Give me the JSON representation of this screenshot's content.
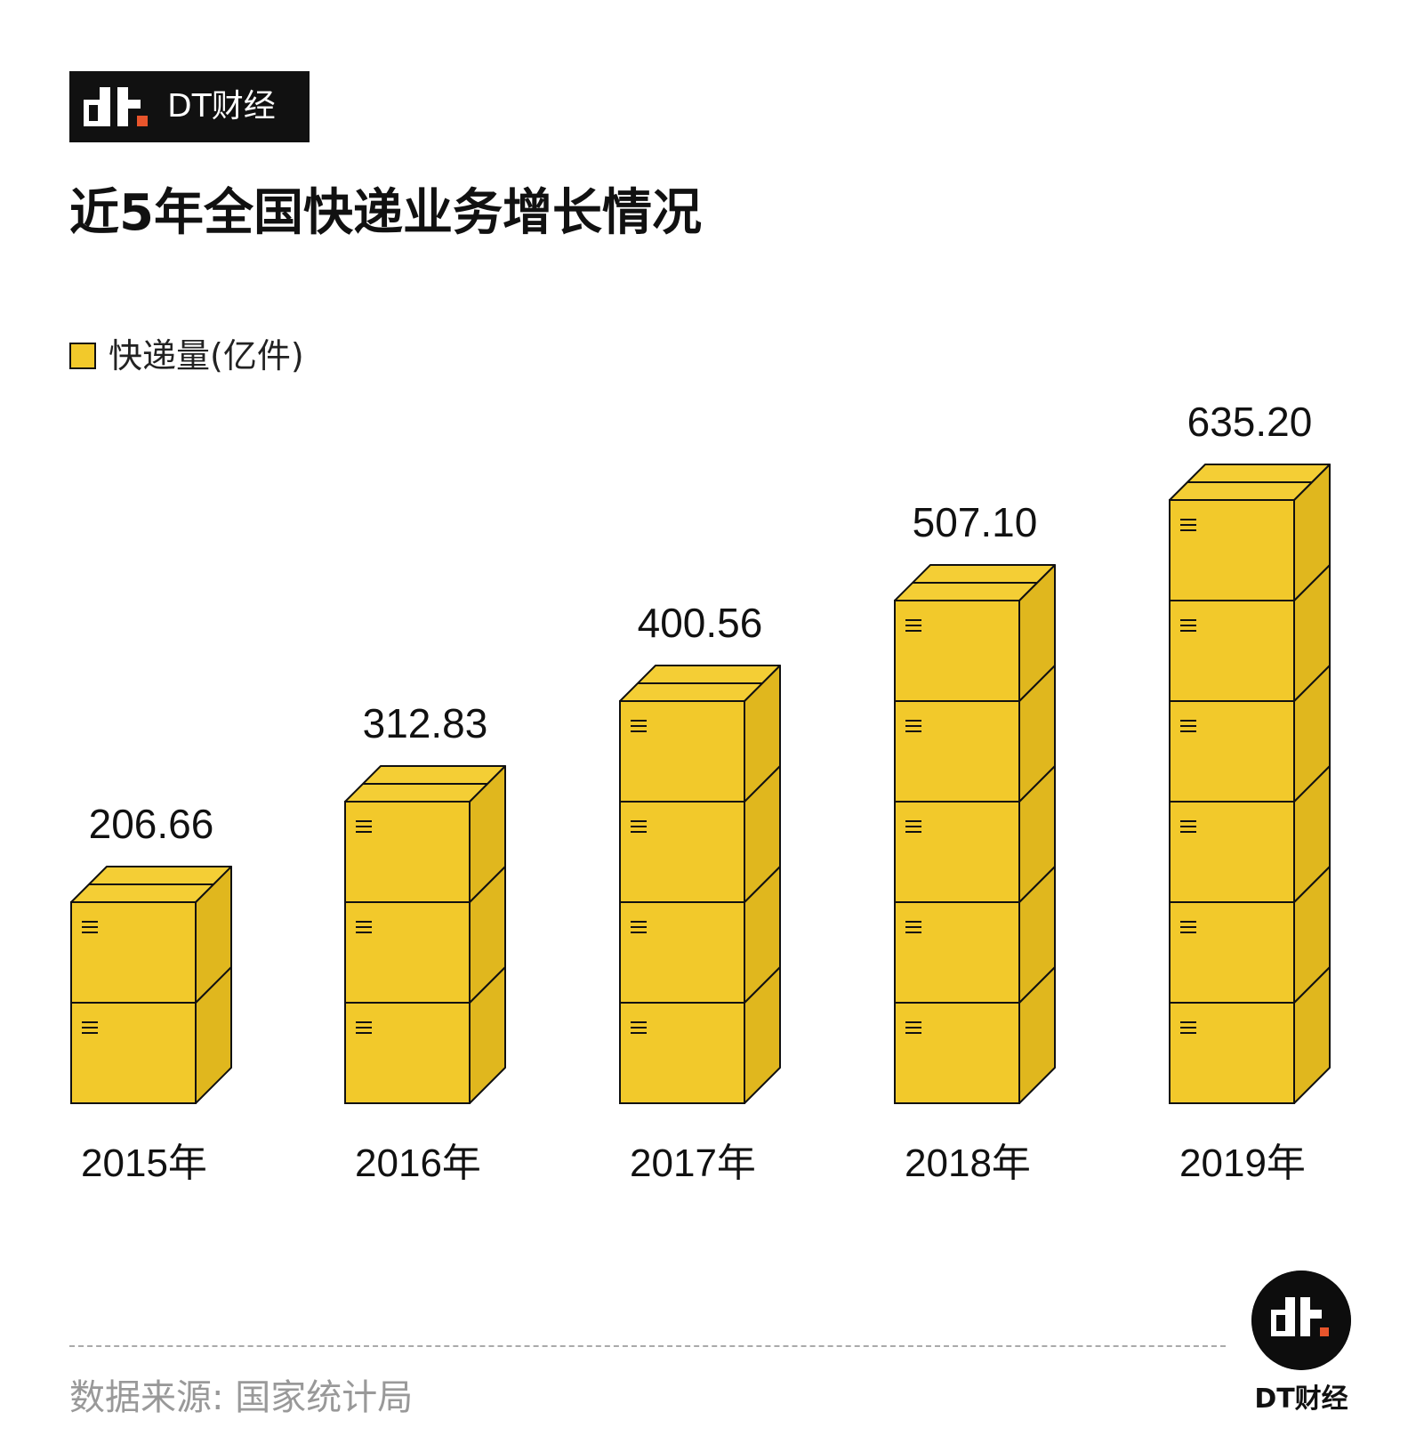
{
  "brand": {
    "name": "DT财经"
  },
  "title": "近5年全国快递业务增长情况",
  "legend": {
    "label": "快递量(亿件)"
  },
  "colors": {
    "box_front": "#F2C92B",
    "box_side": "#E0B71E",
    "box_top": "#F4CE35",
    "outline": "#111111",
    "brand_accent": "#E8552C"
  },
  "chart_data": {
    "type": "bar",
    "categories": [
      "2015年",
      "2016年",
      "2017年",
      "2018年",
      "2019年"
    ],
    "series": [
      {
        "name": "快递量(亿件)",
        "values": [
          206.66,
          312.83,
          400.56,
          507.1,
          635.2
        ]
      }
    ],
    "value_labels": [
      "206.66",
      "312.83",
      "400.56",
      "507.10",
      "635.20"
    ],
    "stacked_boxes": [
      2,
      3,
      4,
      5,
      6
    ]
  },
  "footer": {
    "source": "数据来源: 国家统计局",
    "logo_name": "DT财经"
  }
}
